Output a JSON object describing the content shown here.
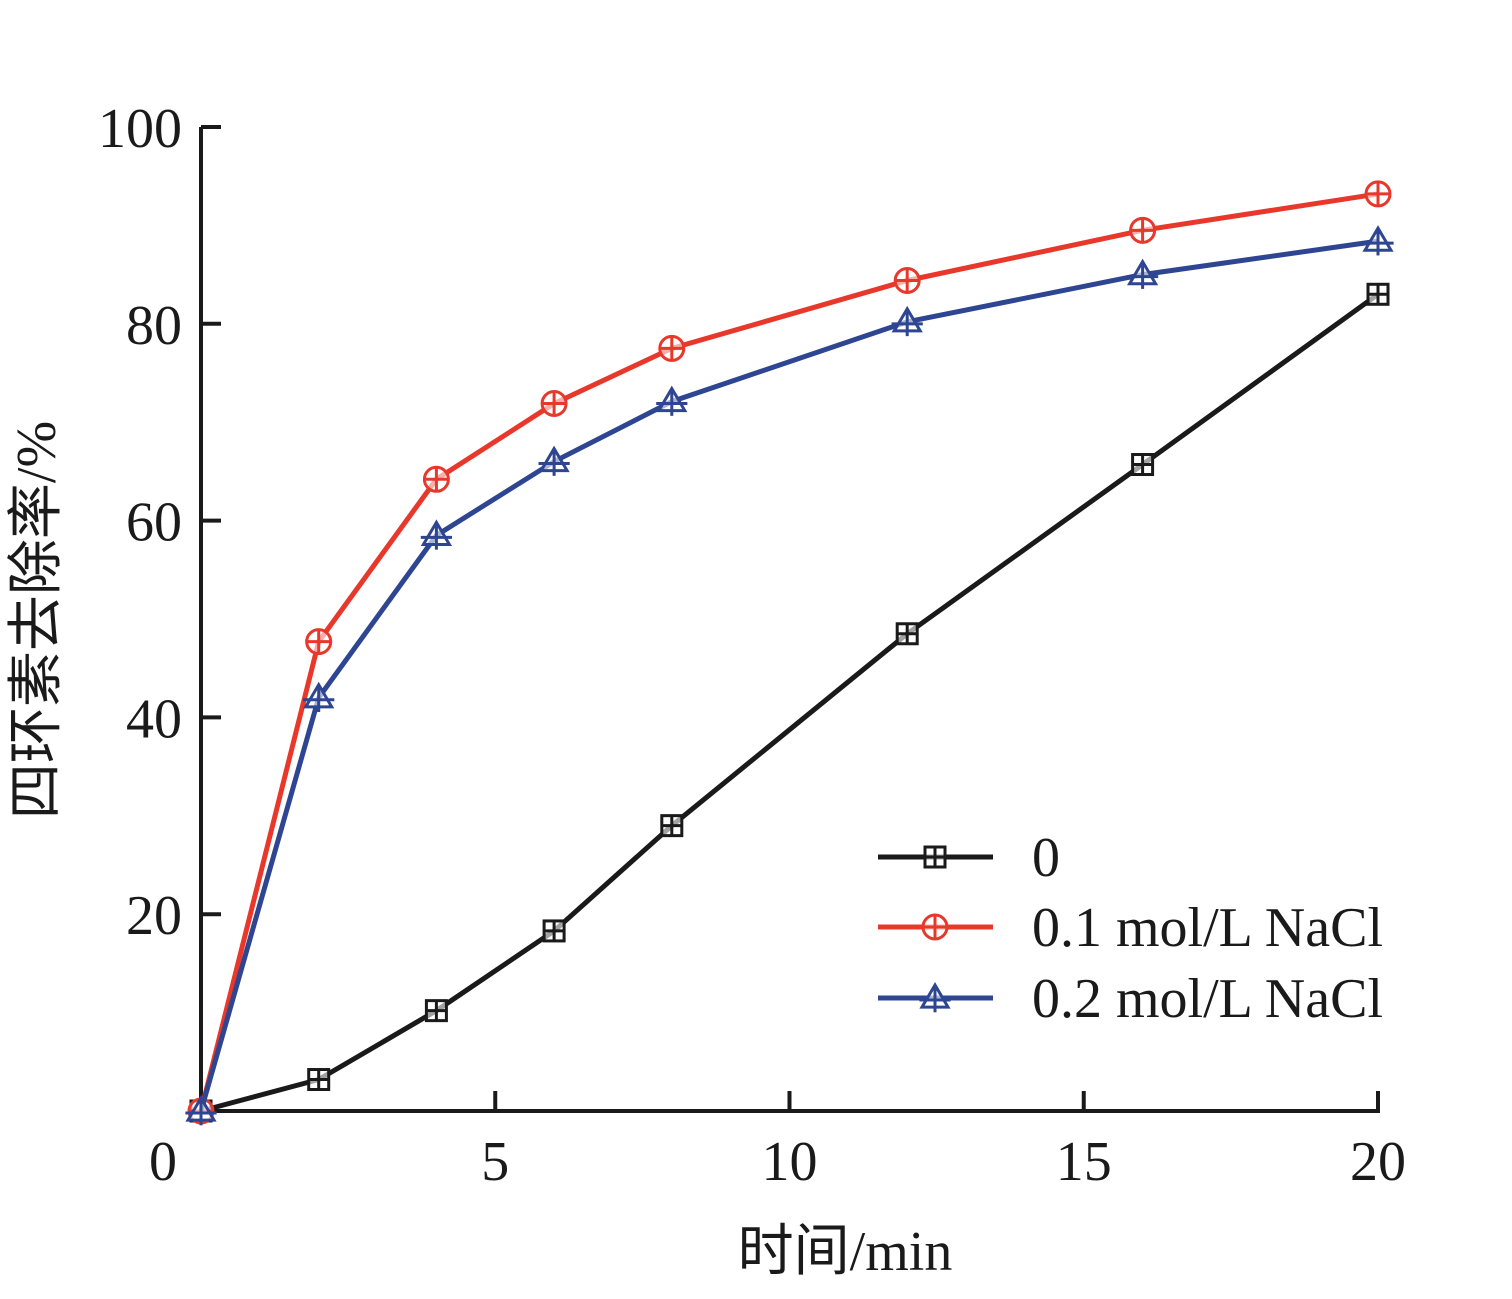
{
  "chart_data": {
    "type": "line",
    "title": "",
    "xlabel": "时间/min",
    "ylabel": "四环素去除率/%",
    "xlim": [
      0,
      20
    ],
    "ylim": [
      0,
      100
    ],
    "xticks": [
      0,
      5,
      10,
      15,
      20
    ],
    "yticks": [
      20,
      40,
      60,
      80,
      100
    ],
    "x_tick_labels": [
      "0",
      "5",
      "10",
      "15",
      "20"
    ],
    "y_tick_labels": [
      "20",
      "40",
      "60",
      "80",
      "100"
    ],
    "grid": false,
    "legend_position": "bottom-right",
    "x": [
      0,
      2,
      4,
      6,
      8,
      12,
      16,
      20
    ],
    "series": [
      {
        "name": "0",
        "color": "#1a1a1a",
        "marker": "square-cross",
        "values": [
          0,
          3.2,
          10.2,
          18.3,
          29.0,
          48.5,
          65.7,
          83.0
        ]
      },
      {
        "name": "0.1 mol/L NaCl",
        "color": "#e8382b",
        "marker": "circle-cross",
        "values": [
          0,
          47.7,
          64.2,
          71.9,
          77.5,
          84.4,
          89.5,
          93.2
        ]
      },
      {
        "name": "0.2 mol/L NaCl",
        "color": "#2e4592",
        "marker": "triangle-cross",
        "values": [
          0,
          42.0,
          58.5,
          66.0,
          72.1,
          80.2,
          85.0,
          88.4
        ]
      }
    ]
  }
}
